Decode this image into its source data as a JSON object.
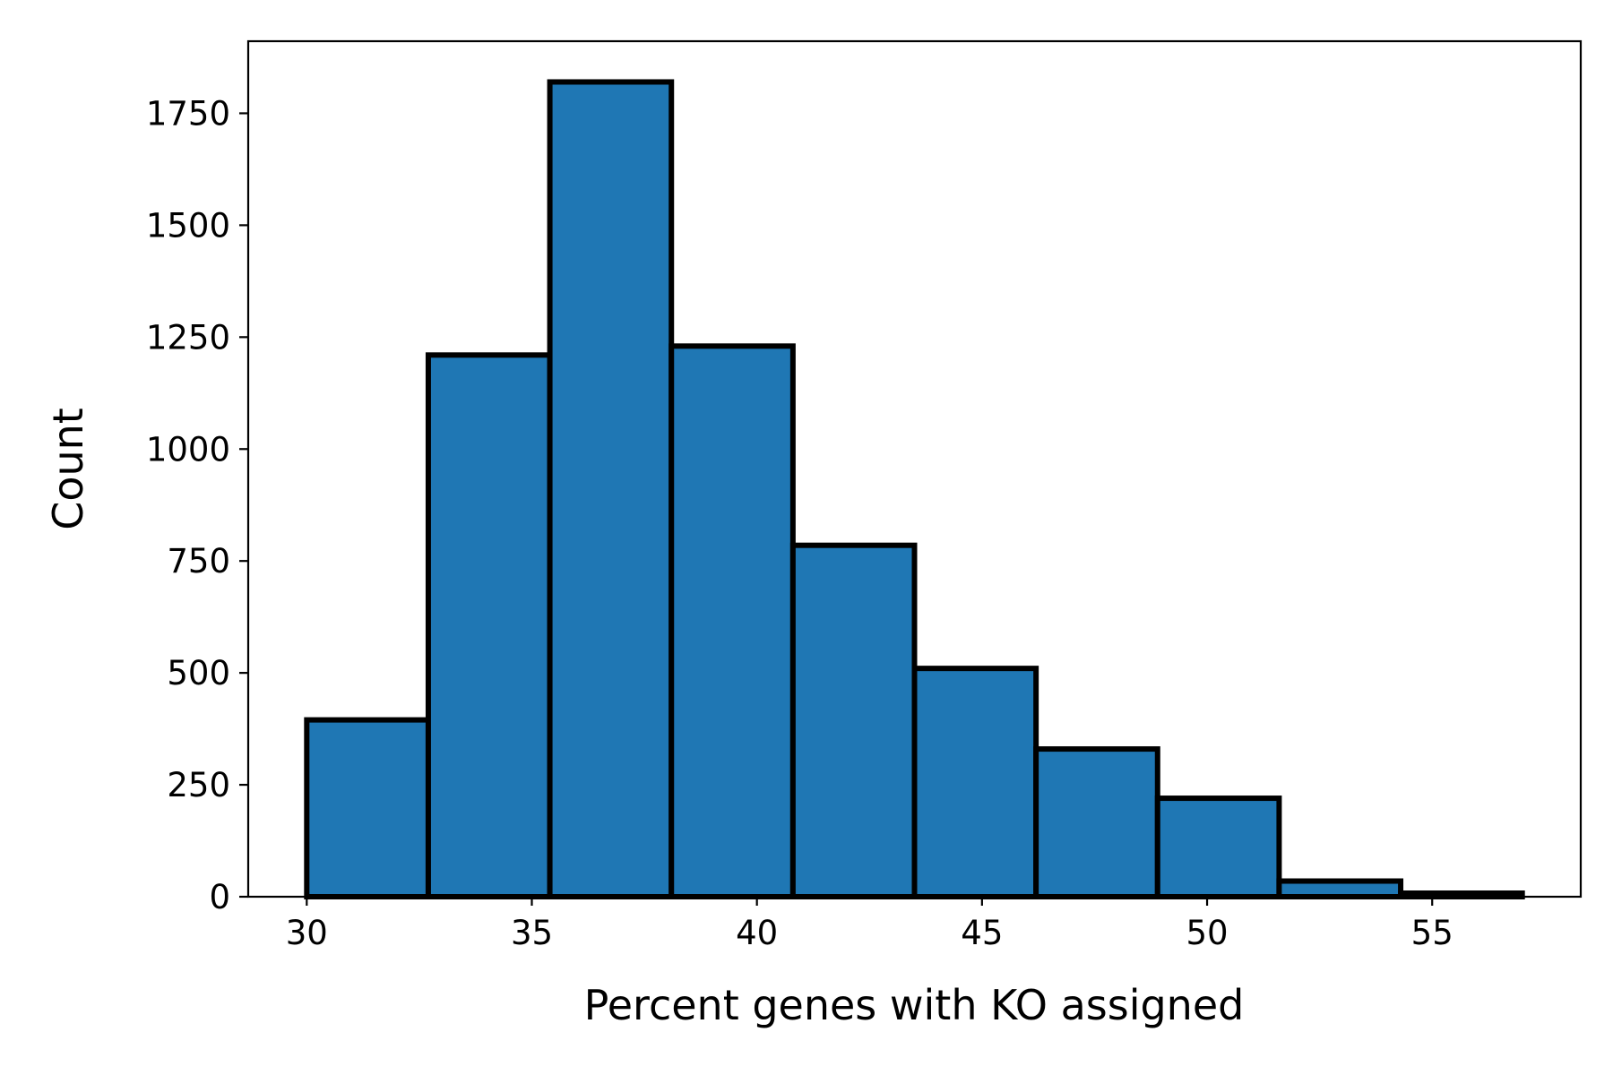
{
  "chart_data": {
    "type": "bar",
    "subtype": "histogram",
    "xlabel": "Percent genes with KO assigned",
    "ylabel": "Count",
    "bins": [
      {
        "x0": 30.0,
        "x1": 32.7,
        "count": 395
      },
      {
        "x0": 32.7,
        "x1": 35.4,
        "count": 1210
      },
      {
        "x0": 35.4,
        "x1": 38.1,
        "count": 1820
      },
      {
        "x0": 38.1,
        "x1": 40.8,
        "count": 1230
      },
      {
        "x0": 40.8,
        "x1": 43.5,
        "count": 785
      },
      {
        "x0": 43.5,
        "x1": 46.2,
        "count": 510
      },
      {
        "x0": 46.2,
        "x1": 48.9,
        "count": 330
      },
      {
        "x0": 48.9,
        "x1": 51.6,
        "count": 220
      },
      {
        "x0": 51.6,
        "x1": 54.3,
        "count": 35
      },
      {
        "x0": 54.3,
        "x1": 57.0,
        "count": 8
      }
    ],
    "xlim": [
      28.7,
      58.3
    ],
    "ylim": [
      0,
      1911
    ],
    "xticks": [
      30,
      35,
      40,
      45,
      50,
      55
    ],
    "yticks": [
      0,
      250,
      500,
      750,
      1000,
      1250,
      1500,
      1750
    ],
    "grid": false,
    "legend": "none",
    "colors": {
      "bar_fill": "#1f77b4",
      "bar_edge": "#000000"
    }
  }
}
